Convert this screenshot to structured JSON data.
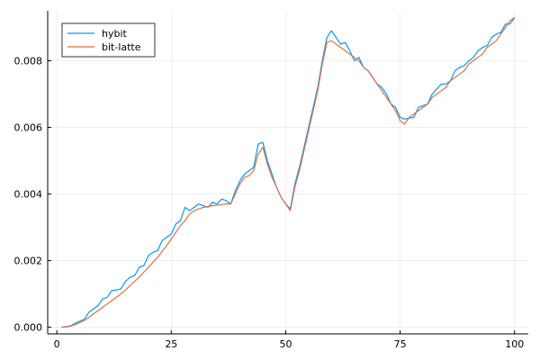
{
  "chart_data": {
    "type": "line",
    "title": "",
    "xlabel": "",
    "ylabel": "",
    "xlim": [
      -2,
      103
    ],
    "ylim": [
      -0.0002,
      0.0095
    ],
    "xticks": [
      0,
      25,
      50,
      75,
      100
    ],
    "xtick_labels": [
      "0",
      "25",
      "50",
      "75",
      "100"
    ],
    "yticks": [
      0.0,
      0.002,
      0.004,
      0.006,
      0.008
    ],
    "ytick_labels": [
      "0.000",
      "0.002",
      "0.004",
      "0.006",
      "0.008"
    ],
    "grid": true,
    "legend_position": "top-left",
    "x": [
      1,
      2,
      3,
      4,
      5,
      6,
      7,
      8,
      9,
      10,
      11,
      12,
      13,
      14,
      15,
      16,
      17,
      18,
      19,
      20,
      21,
      22,
      23,
      24,
      25,
      26,
      27,
      28,
      29,
      30,
      31,
      32,
      33,
      34,
      35,
      36,
      37,
      38,
      39,
      40,
      41,
      42,
      43,
      44,
      45,
      46,
      47,
      48,
      49,
      50,
      51,
      52,
      53,
      54,
      55,
      56,
      57,
      58,
      59,
      60,
      61,
      62,
      63,
      64,
      65,
      66,
      67,
      68,
      69,
      70,
      71,
      72,
      73,
      74,
      75,
      76,
      77,
      78,
      79,
      80,
      81,
      82,
      83,
      84,
      85,
      86,
      87,
      88,
      89,
      90,
      91,
      92,
      93,
      94,
      95,
      96,
      97,
      98,
      99,
      100
    ],
    "series": [
      {
        "name": "hybit",
        "color": "#009af9",
        "values": [
          0.0,
          2e-05,
          4e-05,
          0.00012,
          0.00018,
          0.00024,
          0.00045,
          0.00055,
          0.00065,
          0.00085,
          0.0009,
          0.0011,
          0.00112,
          0.00115,
          0.00138,
          0.0015,
          0.00155,
          0.0018,
          0.00185,
          0.00215,
          0.00225,
          0.0023,
          0.0026,
          0.0027,
          0.0028,
          0.0031,
          0.0032,
          0.0036,
          0.0035,
          0.0036,
          0.0037,
          0.00365,
          0.0036,
          0.00375,
          0.0037,
          0.00385,
          0.0038,
          0.0037,
          0.0041,
          0.0044,
          0.0046,
          0.0047,
          0.0048,
          0.0055,
          0.00555,
          0.005,
          0.0046,
          0.0042,
          0.0039,
          0.0037,
          0.00355,
          0.0043,
          0.0048,
          0.0054,
          0.006,
          0.0066,
          0.0072,
          0.008,
          0.0087,
          0.0089,
          0.0087,
          0.0085,
          0.00855,
          0.0083,
          0.008,
          0.0081,
          0.0078,
          0.0077,
          0.0075,
          0.0073,
          0.0072,
          0.007,
          0.0067,
          0.0066,
          0.0063,
          0.00625,
          0.00628,
          0.0063,
          0.0066,
          0.00665,
          0.0067,
          0.007,
          0.00715,
          0.0073,
          0.0073,
          0.0074,
          0.0077,
          0.0078,
          0.00785,
          0.008,
          0.0081,
          0.0083,
          0.0084,
          0.00845,
          0.0087,
          0.0088,
          0.00885,
          0.0091,
          0.0091,
          0.0093
        ]
      },
      {
        "name": "bit-latte",
        "color": "#e26f46",
        "values": [
          0.0,
          1e-05,
          3e-05,
          8e-05,
          0.00014,
          0.0002,
          0.0003,
          0.0004,
          0.0005,
          0.0006,
          0.0007,
          0.0008,
          0.0009,
          0.001,
          0.00112,
          0.00125,
          0.00138,
          0.0015,
          0.00165,
          0.0018,
          0.00195,
          0.0021,
          0.00228,
          0.00245,
          0.00265,
          0.00285,
          0.00305,
          0.0032,
          0.0034,
          0.0035,
          0.00355,
          0.0036,
          0.00362,
          0.00365,
          0.00366,
          0.00368,
          0.0037,
          0.0037,
          0.004,
          0.0043,
          0.0045,
          0.00455,
          0.0047,
          0.0052,
          0.0054,
          0.0049,
          0.0045,
          0.0042,
          0.0039,
          0.0037,
          0.0035,
          0.0042,
          0.0047,
          0.0053,
          0.0059,
          0.0065,
          0.0071,
          0.0079,
          0.00855,
          0.0086,
          0.0085,
          0.0084,
          0.0083,
          0.0082,
          0.0081,
          0.008,
          0.0078,
          0.0077,
          0.0075,
          0.0073,
          0.0071,
          0.0069,
          0.0067,
          0.0065,
          0.0062,
          0.0061,
          0.0063,
          0.0064,
          0.0065,
          0.0066,
          0.0067,
          0.0069,
          0.007,
          0.0071,
          0.0072,
          0.0074,
          0.0075,
          0.0076,
          0.0077,
          0.0079,
          0.008,
          0.0081,
          0.0082,
          0.0084,
          0.0085,
          0.0086,
          0.0088,
          0.009,
          0.0092,
          0.0093
        ]
      }
    ]
  }
}
